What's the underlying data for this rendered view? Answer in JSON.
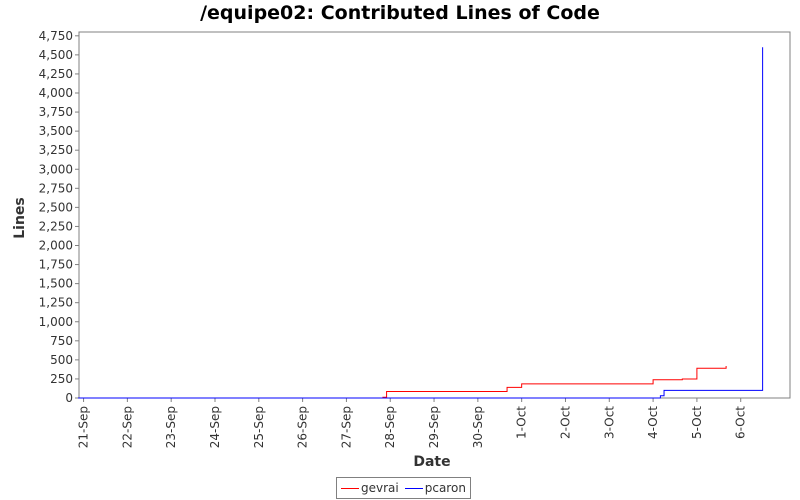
{
  "chart_data": {
    "type": "line",
    "title": "/equipe02: Contributed Lines of Code",
    "xlabel": "Date",
    "ylabel": "Lines",
    "x_tick_labels": [
      "21-Sep",
      "22-Sep",
      "23-Sep",
      "24-Sep",
      "25-Sep",
      "26-Sep",
      "27-Sep",
      "28-Sep",
      "29-Sep",
      "30-Sep",
      "1-Oct",
      "2-Oct",
      "3-Oct",
      "4-Oct",
      "5-Oct",
      "6-Oct"
    ],
    "xlim": [
      "2007-09-20 21:30",
      "2007-10-07 03:00"
    ],
    "ylim": [
      0,
      4800
    ],
    "y_ticks": [
      0,
      250,
      500,
      750,
      1000,
      1250,
      1500,
      1750,
      2000,
      2250,
      2500,
      2750,
      3000,
      3250,
      3500,
      3750,
      4000,
      4250,
      4500,
      4750
    ],
    "grid": false,
    "legend_position": "bottom",
    "series": [
      {
        "name": "gevrai",
        "color": "#ff0000",
        "step": true,
        "points": [
          [
            "2007-09-27 18:00",
            0
          ],
          [
            "2007-09-27 20:00",
            10
          ],
          [
            "2007-09-27 22:00",
            85
          ],
          [
            "2007-09-30 16:00",
            140
          ],
          [
            "2007-10-01 00:00",
            185
          ],
          [
            "2007-10-04 00:00",
            240
          ],
          [
            "2007-10-04 16:00",
            250
          ],
          [
            "2007-10-05 00:00",
            390
          ],
          [
            "2007-10-05 16:00",
            420
          ]
        ]
      },
      {
        "name": "pcaron",
        "color": "#0000ff",
        "step": true,
        "points": [
          [
            "2007-09-20 21:00",
            0
          ],
          [
            "2007-10-04 04:00",
            30
          ],
          [
            "2007-10-04 06:00",
            100
          ],
          [
            "2007-10-06 12:00",
            4600
          ]
        ]
      }
    ]
  }
}
